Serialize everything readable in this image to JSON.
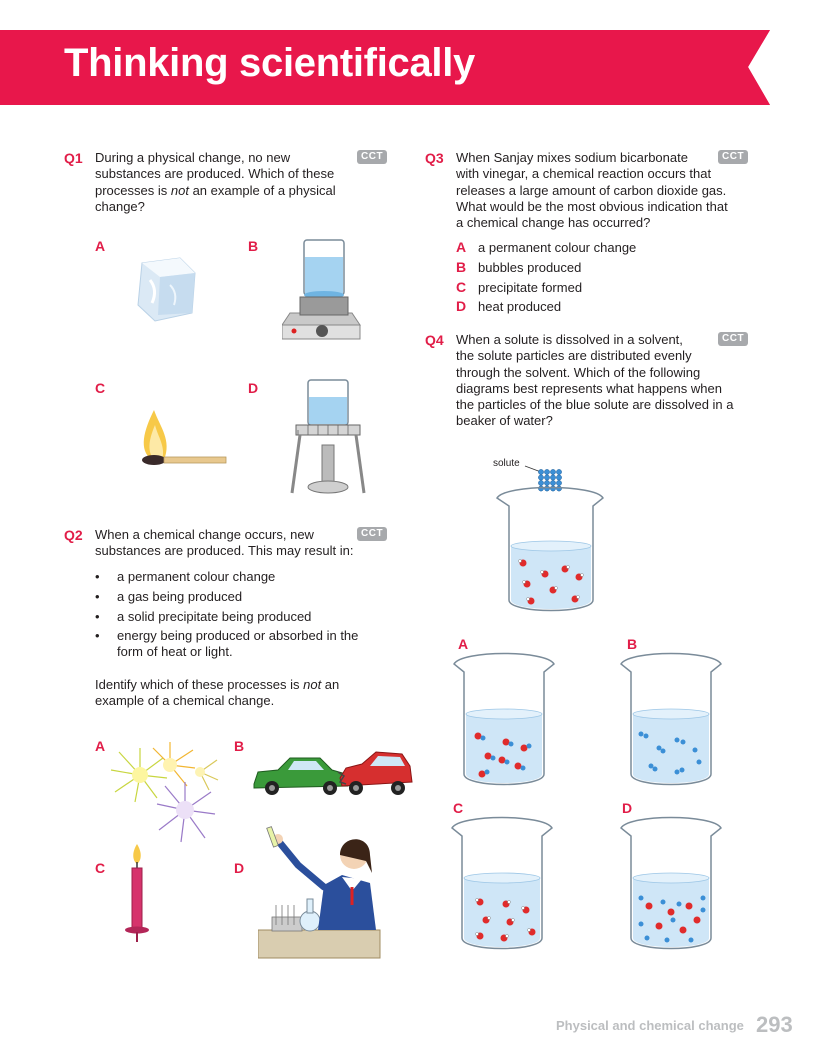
{
  "header": {
    "title": "Thinking scientifically"
  },
  "cct_label": "CCT",
  "q1": {
    "number": "Q1",
    "text_l1": "During a physical change, no new",
    "text_l2": "substances are produced. Which of these",
    "text_l3a": "processes is ",
    "text_l3b": "not",
    "text_l3c": " an example of a physical",
    "text_l4": "change?",
    "options": [
      "A",
      "B",
      "C",
      "D"
    ]
  },
  "q2": {
    "number": "Q2",
    "text_l1": "When a chemical change occurs, new",
    "text_l2": "substances are produced. This may result in:",
    "bullets": [
      "a permanent colour change",
      "a gas being produced",
      "a solid precipitate being produced",
      "energy being produced or absorbed in the",
      "form of heat or light."
    ],
    "identify_a": "Identify which of these processes is ",
    "identify_b": "not",
    "identify_c": " an",
    "identify_l2": "example of a chemical change.",
    "options": [
      "A",
      "B",
      "C",
      "D"
    ]
  },
  "q3": {
    "number": "Q3",
    "lines": [
      "When Sanjay mixes sodium bicarbonate",
      "with vinegar, a chemical reaction occurs that",
      "releases a large amount of carbon dioxide gas.",
      "What would be the most obvious indication that",
      "a chemical change has occurred?"
    ],
    "answers": [
      {
        "letter": "A",
        "text": "a permanent colour change"
      },
      {
        "letter": "B",
        "text": "bubbles produced"
      },
      {
        "letter": "C",
        "text": "precipitate formed"
      },
      {
        "letter": "D",
        "text": "heat produced"
      }
    ]
  },
  "q4": {
    "number": "Q4",
    "lines": [
      "When a solute is dissolved in a solvent,",
      "the solute particles are distributed evenly",
      "through the solvent. Which of the following",
      "diagrams best represents what happens when",
      "the particles of the blue solute are dissolved in a",
      "beaker of water?"
    ],
    "solute_label": "solute",
    "options": [
      "A",
      "B",
      "C",
      "D"
    ]
  },
  "footer": {
    "chapter": "Physical and chemical change",
    "page": "293"
  },
  "colors": {
    "banner": "#e8174b",
    "accent": "#e11d48",
    "cct": "#a7a9ac",
    "water": "#cfe6f7"
  }
}
